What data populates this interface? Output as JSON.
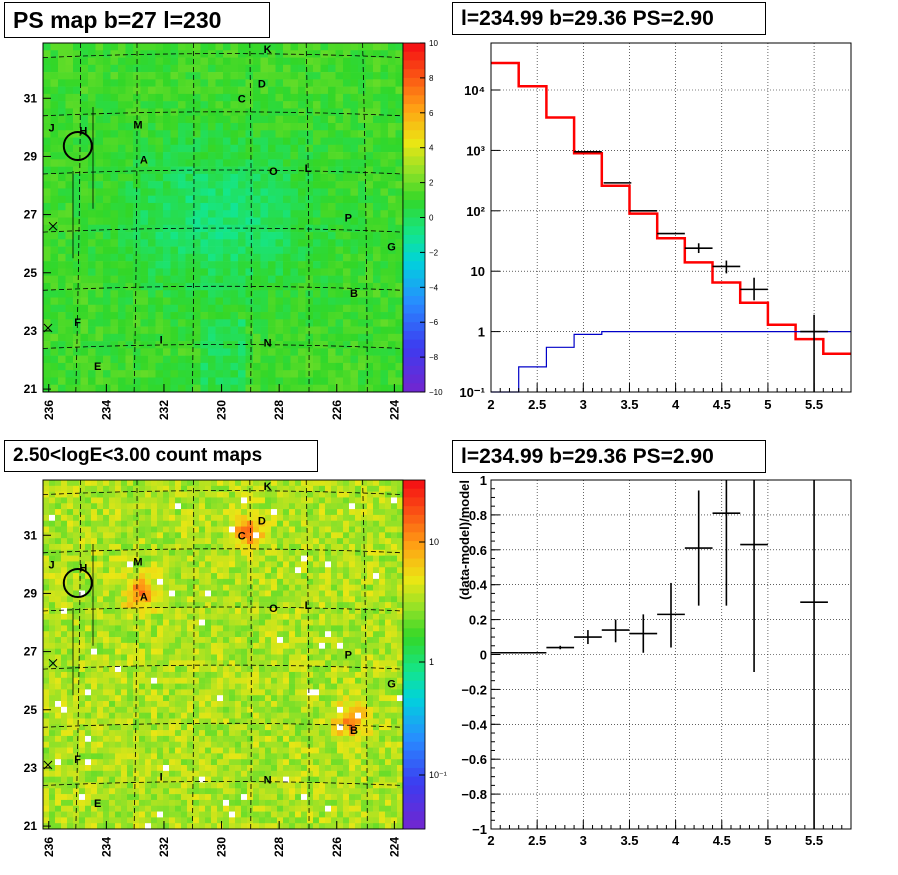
{
  "titles": {
    "ps_map": "PS map b=27 l=230",
    "spectrum": "l=234.99 b=29.36 PS=2.90",
    "count_map": "2.50<logE<3.00 count maps",
    "residual": "l=234.99 b=29.36 PS=2.90"
  },
  "chart_data": [
    {
      "type": "heatmap",
      "title": "PS map b=27 l=230",
      "x_ticks": [
        "236",
        "234",
        "232",
        "230",
        "228",
        "226",
        "224"
      ],
      "y_ticks": [
        "21",
        "23",
        "25",
        "27",
        "29",
        "31"
      ],
      "xlim": [
        236.2,
        223.7
      ],
      "ylim": [
        20.9,
        32.9
      ],
      "colorbar": {
        "min": -10,
        "max": 10,
        "ticks": [
          "10",
          "8",
          "6",
          "4",
          "2",
          "0",
          "−2",
          "−4",
          "−6",
          "−8",
          "−10"
        ]
      },
      "sources": [
        {
          "label": "K",
          "l": 228.4,
          "b": 32.7
        },
        {
          "label": "D",
          "l": 228.6,
          "b": 31.5
        },
        {
          "label": "C",
          "l": 229.3,
          "b": 31.0
        },
        {
          "label": "J",
          "l": 235.9,
          "b": 30.0
        },
        {
          "label": "M",
          "l": 232.9,
          "b": 30.1
        },
        {
          "label": "H",
          "l": 234.8,
          "b": 29.9
        },
        {
          "label": "A",
          "l": 232.7,
          "b": 28.9
        },
        {
          "label": "O",
          "l": 228.2,
          "b": 28.5
        },
        {
          "label": "L",
          "l": 227.0,
          "b": 28.6
        },
        {
          "label": "P",
          "l": 225.6,
          "b": 26.9
        },
        {
          "label": "G",
          "l": 224.1,
          "b": 25.9
        },
        {
          "label": "B",
          "l": 225.4,
          "b": 24.3
        },
        {
          "label": "F",
          "l": 235.0,
          "b": 23.3
        },
        {
          "label": "I",
          "l": 232.1,
          "b": 22.7
        },
        {
          "label": "N",
          "l": 228.4,
          "b": 22.6
        },
        {
          "label": "E",
          "l": 234.3,
          "b": 21.8
        }
      ],
      "circle": {
        "l": 234.99,
        "b": 29.36
      }
    },
    {
      "type": "line",
      "title": "l=234.99 b=29.36 PS=2.90",
      "x_ticks": [
        "2",
        "2.5",
        "3",
        "3.5",
        "4",
        "4.5",
        "5",
        "5.5"
      ],
      "y_ticks": [
        "10⁻¹",
        "1",
        "10",
        "10²",
        "10³",
        "10⁴"
      ],
      "xlim": [
        2.0,
        5.9
      ],
      "ylim": [
        0.1,
        60000
      ],
      "log_y": true,
      "grid": true,
      "series": [
        {
          "edges": [
            2.0,
            2.3,
            2.6,
            2.9,
            3.2,
            3.5,
            3.8,
            4.1,
            4.4,
            4.7,
            5.0,
            5.3,
            5.6,
            5.9
          ],
          "values": [
            28000,
            11500,
            3500,
            900,
            260,
            90,
            35,
            14,
            6.5,
            3.0,
            1.3,
            0.75,
            0.43
          ]
        },
        {
          "edges": [
            2.0,
            2.3,
            2.6,
            2.9,
            3.2,
            3.5,
            5.9
          ],
          "values": [
            0.1,
            0.26,
            0.55,
            0.9,
            1.0,
            1.0
          ]
        }
      ],
      "points": [
        {
          "x": 3.05,
          "y": 950,
          "xerr": 0.15
        },
        {
          "x": 3.37,
          "y": 290,
          "xerr": 0.15
        },
        {
          "x": 3.65,
          "y": 100,
          "xerr": 0.15
        },
        {
          "x": 3.95,
          "y": 42,
          "xerr": 0.15
        },
        {
          "x": 4.25,
          "y": 24,
          "xerr": 0.15,
          "ylo": 20,
          "yhi": 29
        },
        {
          "x": 4.55,
          "y": 12,
          "xerr": 0.15,
          "ylo": 9.2,
          "yhi": 15
        },
        {
          "x": 4.85,
          "y": 5,
          "xerr": 0.15,
          "ylo": 3.3,
          "yhi": 7.8
        },
        {
          "x": 5.5,
          "y": 1.0,
          "xerr": 0.15,
          "ylo": 0.1,
          "yhi": 1.9
        }
      ]
    },
    {
      "type": "heatmap",
      "title": "2.50<logE<3.00 count maps",
      "x_ticks": [
        "236",
        "234",
        "232",
        "230",
        "228",
        "226",
        "224"
      ],
      "y_ticks": [
        "21",
        "23",
        "25",
        "27",
        "29",
        "31"
      ],
      "xlim": [
        236.2,
        223.7
      ],
      "ylim": [
        20.9,
        32.9
      ],
      "colorbar": {
        "log": true,
        "ticks": [
          "10",
          "1",
          "10⁻¹"
        ]
      },
      "bright_spots": [
        {
          "label": "C",
          "l": 229.1,
          "b": 31.1
        },
        {
          "label": "A",
          "l": 232.8,
          "b": 29.0
        },
        {
          "label": "B",
          "l": 225.5,
          "b": 24.6
        }
      ]
    },
    {
      "type": "scatter",
      "title": "l=234.99 b=29.36 PS=2.90",
      "ylabel": "(data-model)/model",
      "x_ticks": [
        "2",
        "2.5",
        "3",
        "3.5",
        "4",
        "4.5",
        "5",
        "5.5"
      ],
      "y_ticks": [
        "1",
        "0.8",
        "0.6",
        "0.4",
        "0.2",
        "0",
        "−0.2",
        "−0.4",
        "−0.6",
        "−0.8",
        "−1"
      ],
      "xlim": [
        2.0,
        5.9
      ],
      "ylim": [
        -1,
        1
      ],
      "grid": true,
      "points": [
        {
          "x": 2.15,
          "y": 0.01,
          "xerr": 0.15
        },
        {
          "x": 2.45,
          "y": 0.01,
          "xerr": 0.15
        },
        {
          "x": 2.75,
          "y": 0.04,
          "xerr": 0.15,
          "ylo": 0.03,
          "yhi": 0.05
        },
        {
          "x": 3.05,
          "y": 0.1,
          "xerr": 0.15,
          "ylo": 0.06,
          "yhi": 0.14
        },
        {
          "x": 3.35,
          "y": 0.14,
          "xerr": 0.15,
          "ylo": 0.07,
          "yhi": 0.2
        },
        {
          "x": 3.65,
          "y": 0.12,
          "xerr": 0.15,
          "ylo": 0.01,
          "yhi": 0.23
        },
        {
          "x": 3.95,
          "y": 0.23,
          "xerr": 0.15,
          "ylo": 0.04,
          "yhi": 0.41
        },
        {
          "x": 4.25,
          "y": 0.61,
          "xerr": 0.15,
          "ylo": 0.28,
          "yhi": 0.94
        },
        {
          "x": 4.55,
          "y": 0.81,
          "xerr": 0.15,
          "ylo": 0.28,
          "yhi": 1.0
        },
        {
          "x": 4.85,
          "y": 0.63,
          "xerr": 0.15,
          "ylo": -0.1,
          "yhi": 1.0
        },
        {
          "x": 5.5,
          "y": 0.3,
          "xerr": 0.15,
          "ylo": -1.0,
          "yhi": 1.0
        }
      ]
    }
  ]
}
